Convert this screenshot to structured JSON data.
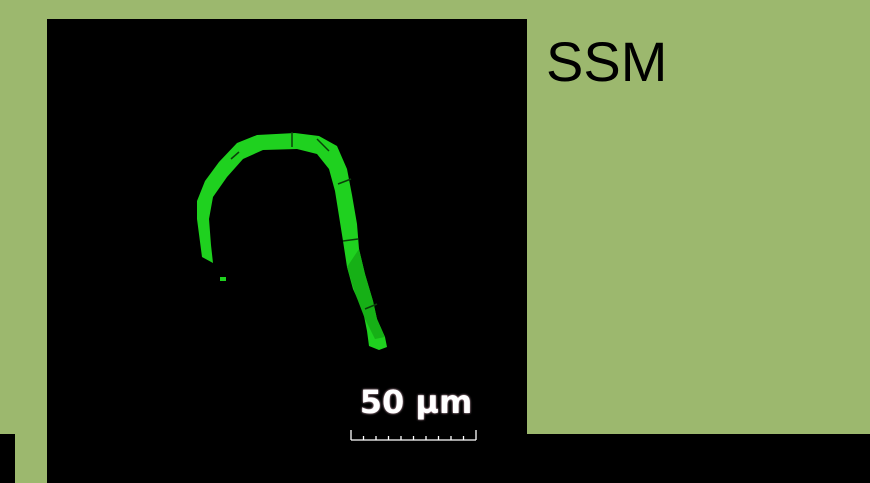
{
  "panel": {
    "title": "SSM"
  },
  "micrograph": {
    "scale_bar_label": "50 µm",
    "scale_bar_ticks": 10,
    "filament_color": "#1fd11f",
    "filament_dark_color": "#12a012",
    "background_color": "#000000"
  },
  "colors": {
    "page_background": "#9cb86e",
    "band": "#000000"
  }
}
